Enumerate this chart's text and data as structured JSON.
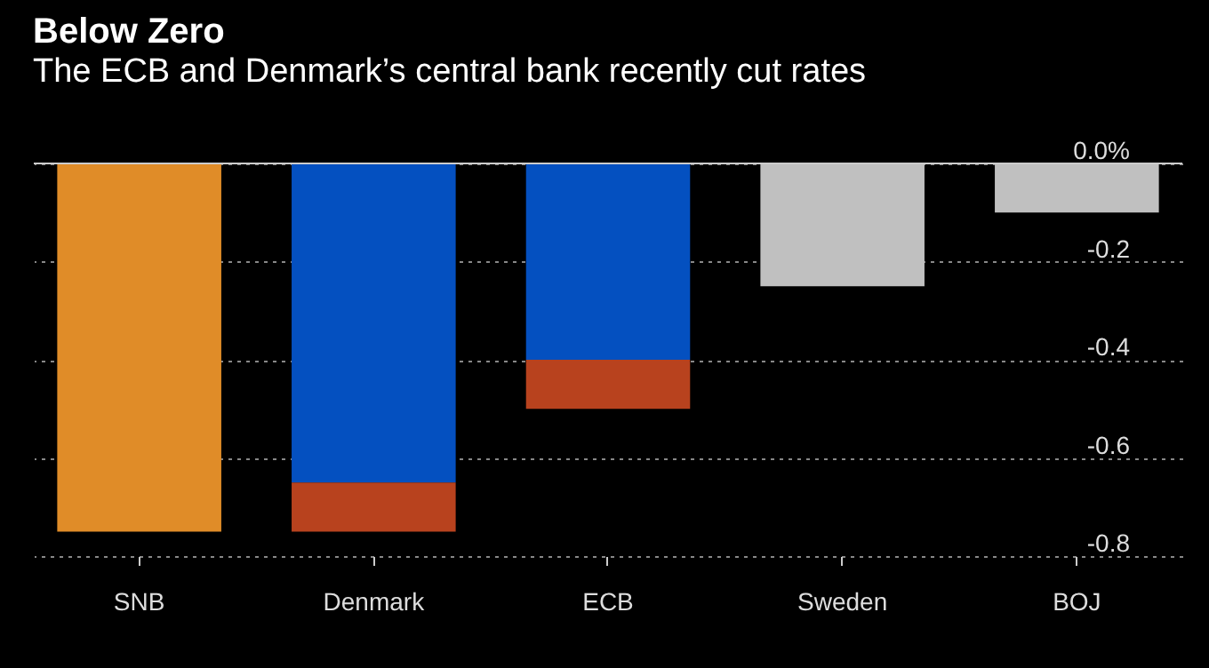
{
  "chart_data": {
    "type": "bar",
    "title": "Below Zero",
    "subtitle": "The ECB and Denmark’s central bank recently cut rates",
    "categories": [
      "SNB",
      "Denmark",
      "ECB",
      "Sweden",
      "BOJ"
    ],
    "stacked": true,
    "series": [
      {
        "colors": [
          "#e08c28",
          "#0450c0",
          "#0450c0",
          "#c0c0c0",
          "#c0c0c0"
        ],
        "values": [
          -0.75,
          -0.65,
          -0.4,
          -0.25,
          -0.1
        ]
      },
      {
        "color": "#b8421e",
        "values": [
          null,
          -0.1,
          -0.1,
          null,
          null
        ]
      }
    ],
    "ylim": [
      -0.8,
      0
    ],
    "yticks": [
      {
        "value": 0,
        "label": "0.0%"
      },
      -0.2,
      -0.4,
      -0.6,
      -0.8
    ],
    "grid": "y"
  }
}
